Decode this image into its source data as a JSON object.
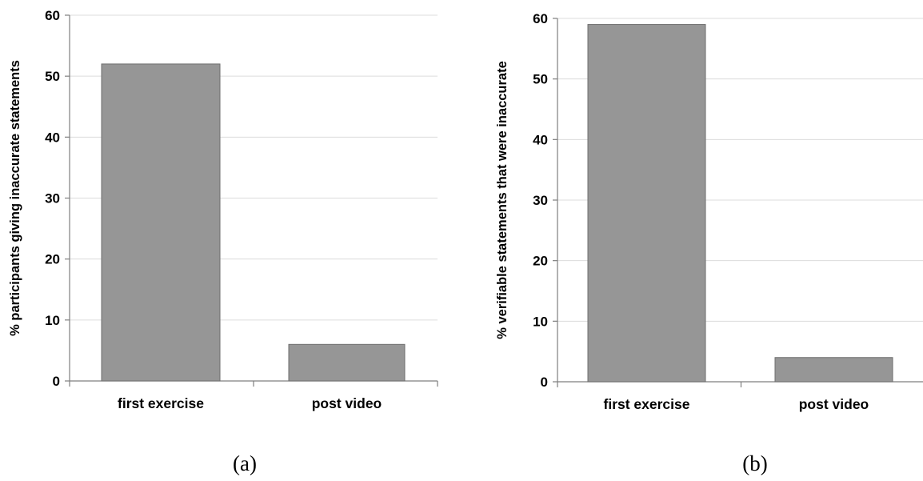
{
  "chart_data": [
    {
      "type": "bar",
      "categories": [
        "first exercise",
        "post video"
      ],
      "values": [
        52,
        6
      ],
      "ylabel": "% participants giving inaccurate statements",
      "ylim": [
        0,
        60
      ],
      "yticks": [
        0,
        10,
        20,
        30,
        40,
        50,
        60
      ],
      "caption": "(a)",
      "bar_color": "#969696",
      "grid": true
    },
    {
      "type": "bar",
      "categories": [
        "first exercise",
        "post video"
      ],
      "values": [
        59,
        4
      ],
      "ylabel": "% verifiable statements that were inaccurate",
      "ylim": [
        0,
        60
      ],
      "yticks": [
        0,
        10,
        20,
        30,
        40,
        50,
        60
      ],
      "caption": "(b)",
      "bar_color": "#969696",
      "grid": true
    }
  ]
}
